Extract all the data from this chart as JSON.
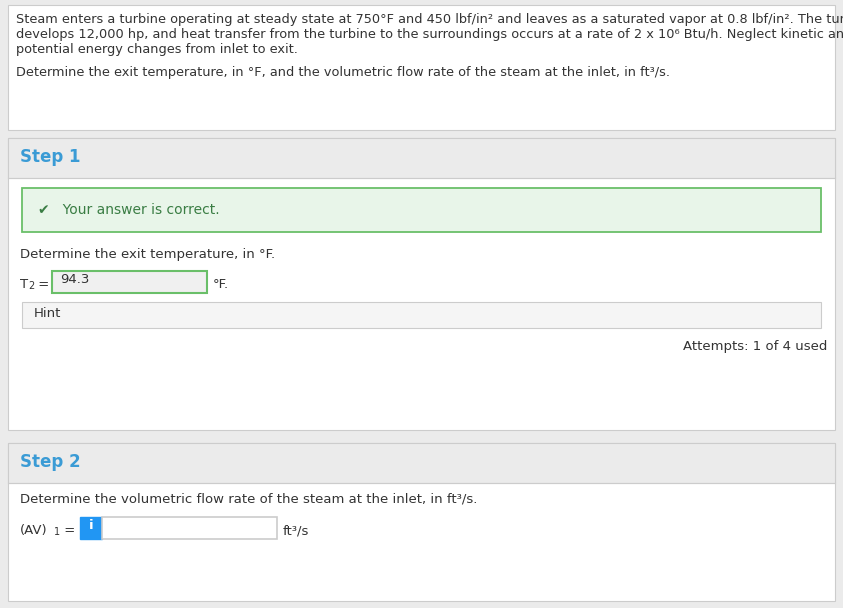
{
  "outer_bg": "#ebebeb",
  "white": "#ffffff",
  "border_color": "#cccccc",
  "text_color": "#333333",
  "step_color": "#3a9bd5",
  "correct_banner_bg": "#e8f5e9",
  "correct_banner_border": "#6abf69",
  "correct_text_color": "#3a7d44",
  "hint_bg": "#f5f5f5",
  "input_border_green": "#6abf69",
  "info_icon_color": "#2196f3",
  "problem_lines": [
    "Steam enters a turbine operating at steady state at 750°F and 450 lbf/in² and leaves as a saturated vapor at 0.8 lbf/in². The turbine",
    "develops 12,000 hp, and heat transfer from the turbine to the surroundings occurs at a rate of 2 x 10⁶ Btu/h. Neglect kinetic and",
    "potential energy changes from inlet to exit."
  ],
  "question_line": "Determine the exit temperature, in °F, and the volumetric flow rate of the steam at the inlet, in ft³/s.",
  "step1_label": "Step 1",
  "correct_text": "✔   Your answer is correct.",
  "step1_q": "Determine the exit temperature, in °F.",
  "t2_value": "94.3",
  "t2_unit": "°F.",
  "hint_text": "Hint",
  "attempts_text": "Attempts: 1 of 4 used",
  "step2_label": "Step 2",
  "step2_q": "Determine the volumetric flow rate of the steam at the inlet, in ft³/s.",
  "av_unit": "ft³/s",
  "figw": 8.43,
  "figh": 6.08,
  "dpi": 100
}
